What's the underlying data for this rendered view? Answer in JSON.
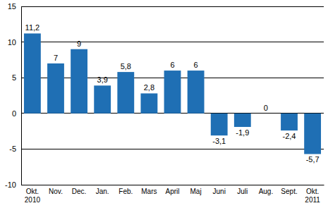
{
  "chart_data": {
    "type": "bar",
    "categories": [
      "Okt.\n2010",
      "Nov.",
      "Dec.",
      "Jan.",
      "Feb.",
      "Mars",
      "April",
      "Maj",
      "Juni",
      "Juli",
      "Aug.",
      "Sept.",
      "Okt.\n2011"
    ],
    "values": [
      11.2,
      7,
      9,
      3.9,
      5.8,
      2.8,
      6,
      6,
      -3.1,
      -1.9,
      0,
      -2.4,
      -5.7
    ],
    "value_labels": [
      "11,2",
      "7",
      "9",
      "3,9",
      "5,8",
      "2,8",
      "6",
      "6",
      "-3,1",
      "-1,9",
      "0",
      "-2,4",
      "-5,7"
    ],
    "color": "#1f6fb4",
    "ylim": [
      -10,
      15
    ],
    "yticks": [
      -10,
      -5,
      0,
      5,
      10,
      15
    ],
    "grid": true,
    "data_labels": true
  }
}
